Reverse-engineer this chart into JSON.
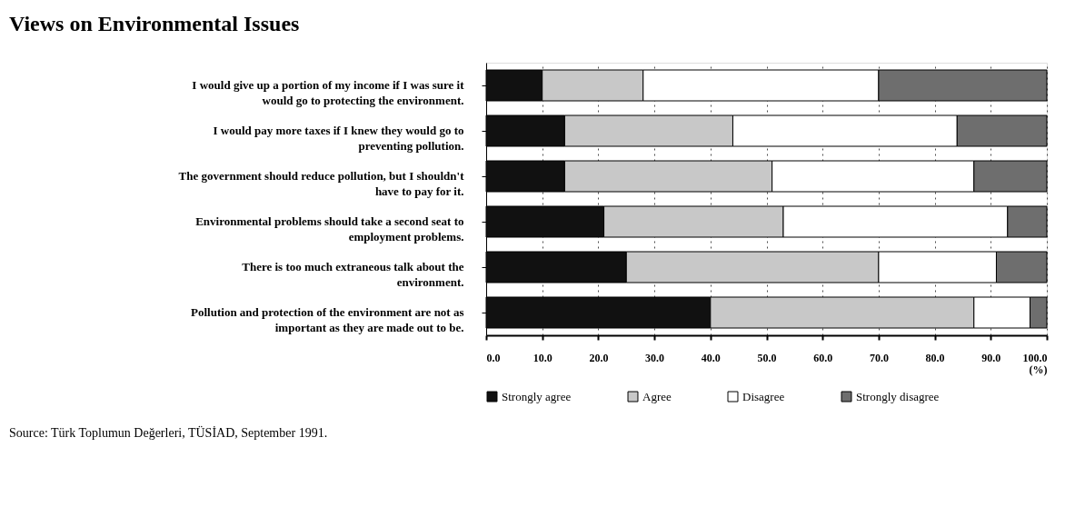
{
  "chart_data": {
    "type": "bar",
    "orientation": "horizontal",
    "stacked": true,
    "title": "Views on Environmental Issues",
    "xlabel": "(%)",
    "categories": [
      "I would give up a portion of my income if I was sure it would go to protecting the environment.",
      "I would pay more taxes if I knew they would go to preventing pollution.",
      "The government should reduce pollution, but I shouldn't have to pay for it.",
      "Environmental problems should take a second seat to employment problems.",
      "There is too much extraneous talk about the environment.",
      "Pollution and protection of the environment are not as important as they are made out to be."
    ],
    "series": [
      {
        "name": "Strongly agree",
        "color": "#111111",
        "values": [
          10,
          14,
          14,
          21,
          25,
          40
        ]
      },
      {
        "name": "Agree",
        "color": "#c8c8c8",
        "values": [
          18,
          30,
          37,
          32,
          45,
          47
        ]
      },
      {
        "name": "Disagree",
        "color": "#ffffff",
        "values": [
          42,
          40,
          36,
          40,
          21,
          10
        ]
      },
      {
        "name": "Strongly disagree",
        "color": "#6e6e6e",
        "values": [
          30,
          16,
          13,
          7,
          9,
          3
        ]
      }
    ],
    "xlim": [
      0,
      100
    ],
    "xticks": [
      {
        "value": 0,
        "label": "0.0"
      },
      {
        "value": 10,
        "label": "10.0"
      },
      {
        "value": 20,
        "label": "20.0"
      },
      {
        "value": 30,
        "label": "30.0"
      },
      {
        "value": 40,
        "label": "40.0"
      },
      {
        "value": 50,
        "label": "50.0"
      },
      {
        "value": 60,
        "label": "60.0"
      },
      {
        "value": 70,
        "label": "70.0"
      },
      {
        "value": 80,
        "label": "80.0"
      },
      {
        "value": 90,
        "label": "90.0"
      },
      {
        "value": 100,
        "label": "100.0"
      }
    ],
    "grid": "x",
    "legend": "bottom",
    "annotations": [
      "Source: Türk Toplumun Değerleri, TÜSİAD, September 1991."
    ]
  }
}
